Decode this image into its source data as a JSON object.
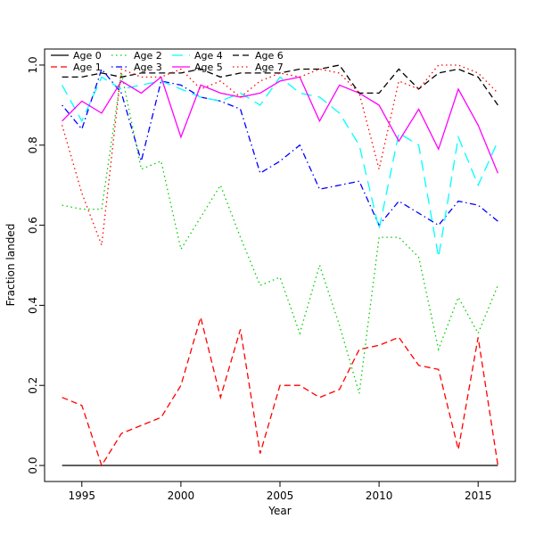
{
  "figure": {
    "background": "#ffffff"
  },
  "chart_data": {
    "type": "line",
    "title": "",
    "xlabel": "Year",
    "ylabel": "Fraction landed",
    "grid": false,
    "legend_position": "top-left",
    "x_ticks": [
      1995,
      2000,
      2005,
      2010,
      2015
    ],
    "y_ticks": [
      0.0,
      0.2,
      0.4,
      0.6,
      0.8,
      1.0
    ],
    "x_range": [
      1993.12,
      2016.88
    ],
    "y_range": [
      -0.04,
      1.04
    ],
    "x": [
      1994,
      1995,
      1996,
      1997,
      1998,
      1999,
      2000,
      2001,
      2002,
      2003,
      2004,
      2005,
      2006,
      2007,
      2008,
      2009,
      2010,
      2011,
      2012,
      2013,
      2014,
      2015,
      2016
    ],
    "series": [
      {
        "name": "Age 0",
        "color": "#000000",
        "linetype": "solid",
        "values": [
          0,
          0,
          0,
          0,
          0,
          0,
          0,
          0,
          0,
          0,
          0,
          0,
          0,
          0,
          0,
          0,
          0,
          0,
          0,
          0,
          0,
          0,
          0
        ]
      },
      {
        "name": "Age 1",
        "color": "#ff0000",
        "linetype": "dashed",
        "values": [
          0.17,
          0.15,
          0.0,
          0.08,
          0.1,
          0.12,
          0.2,
          0.37,
          0.17,
          0.34,
          0.03,
          0.2,
          0.2,
          0.17,
          0.19,
          0.29,
          0.3,
          0.32,
          0.25,
          0.24,
          0.04,
          0.32,
          0.0
        ]
      },
      {
        "name": "Age 2",
        "color": "#00cd00",
        "linetype": "dotted",
        "values": [
          0.65,
          0.64,
          0.64,
          0.98,
          0.74,
          0.76,
          0.54,
          0.62,
          0.7,
          0.57,
          0.45,
          0.47,
          0.33,
          0.5,
          0.35,
          0.18,
          0.57,
          0.57,
          0.52,
          0.29,
          0.42,
          0.33,
          0.45
        ]
      },
      {
        "name": "Age 3",
        "color": "#0000ff",
        "linetype": "dotdash",
        "values": [
          0.9,
          0.84,
          0.99,
          0.93,
          0.76,
          0.96,
          0.95,
          0.92,
          0.91,
          0.89,
          0.73,
          0.76,
          0.8,
          0.69,
          0.7,
          0.71,
          0.6,
          0.66,
          0.63,
          0.6,
          0.66,
          0.65,
          0.61
        ]
      },
      {
        "name": "Age 4",
        "color": "#00ffff",
        "linetype": "longdash",
        "values": [
          0.95,
          0.86,
          0.97,
          0.94,
          0.95,
          0.96,
          0.94,
          0.92,
          0.91,
          0.93,
          0.9,
          0.97,
          0.93,
          0.92,
          0.88,
          0.8,
          0.59,
          0.83,
          0.8,
          0.52,
          0.82,
          0.7,
          0.81
        ]
      },
      {
        "name": "Age 5",
        "color": "#ff00ff",
        "linetype": "solid",
        "values": [
          0.86,
          0.91,
          0.88,
          0.96,
          0.93,
          0.97,
          0.82,
          0.95,
          0.93,
          0.92,
          0.93,
          0.96,
          0.97,
          0.86,
          0.95,
          0.93,
          0.9,
          0.81,
          0.89,
          0.79,
          0.94,
          0.85,
          0.73
        ]
      },
      {
        "name": "Age 6",
        "color": "#000000",
        "linetype": "dashed",
        "values": [
          0.97,
          0.97,
          0.98,
          0.97,
          0.98,
          0.98,
          0.98,
          0.99,
          0.97,
          0.98,
          0.98,
          0.98,
          0.99,
          0.99,
          1.0,
          0.93,
          0.93,
          0.99,
          0.94,
          0.98,
          0.99,
          0.97,
          0.9
        ]
      },
      {
        "name": "Age 7",
        "color": "#ff0000",
        "linetype": "dotted",
        "values": [
          0.85,
          0.68,
          0.55,
          0.99,
          0.97,
          0.97,
          0.99,
          0.94,
          0.96,
          0.92,
          0.96,
          0.98,
          0.97,
          0.99,
          0.98,
          0.93,
          0.74,
          0.96,
          0.94,
          1.0,
          1.0,
          0.98,
          0.93
        ]
      }
    ]
  }
}
